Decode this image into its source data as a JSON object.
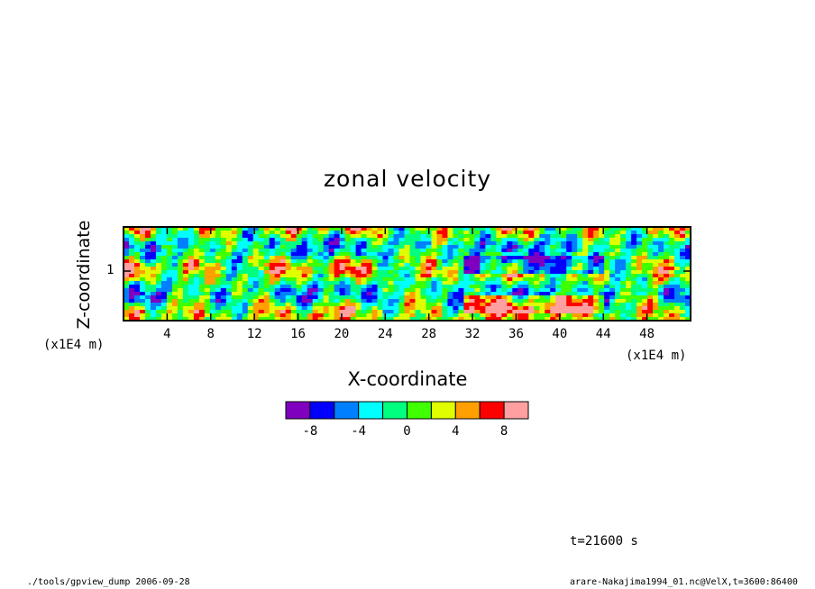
{
  "title": "zonal velocity",
  "ylabel": "Z-coordinate",
  "xlabel": "X-coordinate",
  "x_unit": "(x1E4 m)",
  "y_unit": "(x1E4 m)",
  "time_label": "t=21600 s",
  "footer_left": "./tools/gpview_dump  2006-09-28",
  "footer_right": "arare-Nakajima1994_01.nc@VelX,t=3600:86400",
  "colors": [
    "#7f00bf",
    "#0000ff",
    "#007fff",
    "#00ffff",
    "#00ff7f",
    "#3fff00",
    "#dfff00",
    "#ff9f00",
    "#ff0000",
    "#ff9f9f"
  ],
  "chart_data": {
    "type": "heatmap",
    "title": "zonal velocity",
    "xlabel": "X-coordinate",
    "ylabel": "Z-coordinate",
    "xlim": [
      0,
      52
    ],
    "ylim": [
      0,
      1.8
    ],
    "xticks": [
      "4",
      "8",
      "12",
      "16",
      "20",
      "24",
      "28",
      "32",
      "36",
      "40",
      "44",
      "48"
    ],
    "xtick_values": [
      4,
      8,
      12,
      16,
      20,
      24,
      28,
      32,
      36,
      40,
      44,
      48
    ],
    "yticks": [
      "1"
    ],
    "ytick_values": [
      1
    ],
    "colorbar": {
      "levels": [
        -10,
        -8,
        -6,
        -4,
        -2,
        0,
        2,
        4,
        6,
        8,
        10
      ],
      "tick_labels": [
        "-8",
        "-4",
        "0",
        "4",
        "8"
      ],
      "tick_values": [
        -8,
        -4,
        0,
        4,
        8
      ]
    }
  }
}
